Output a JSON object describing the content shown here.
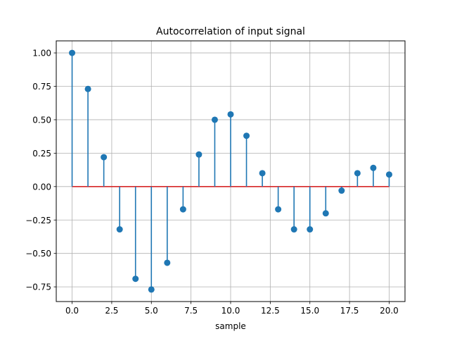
{
  "chart_data": {
    "type": "stem",
    "title": "Autocorrelation of input signal",
    "xlabel": "sample",
    "ylabel": "",
    "xlim": [
      -1.0,
      21.0
    ],
    "ylim": [
      -0.86,
      1.09
    ],
    "grid": true,
    "baseline": 0,
    "x": [
      0,
      1,
      2,
      3,
      4,
      5,
      6,
      7,
      8,
      9,
      10,
      11,
      12,
      13,
      14,
      15,
      16,
      17,
      18,
      19,
      20
    ],
    "values": [
      1.0,
      0.73,
      0.22,
      -0.32,
      -0.69,
      -0.77,
      -0.57,
      -0.17,
      0.24,
      0.5,
      0.54,
      0.38,
      0.1,
      -0.17,
      -0.32,
      -0.32,
      -0.2,
      -0.03,
      0.1,
      0.14,
      0.09
    ],
    "xticks": [
      0.0,
      2.5,
      5.0,
      7.5,
      10.0,
      12.5,
      15.0,
      17.5,
      20.0
    ],
    "xtick_labels": [
      "0.0",
      "2.5",
      "5.0",
      "7.5",
      "10.0",
      "12.5",
      "15.0",
      "17.5",
      "20.0"
    ],
    "yticks": [
      1.0,
      0.75,
      0.5,
      0.25,
      0.0,
      -0.25,
      -0.5,
      -0.75
    ],
    "ytick_labels": [
      "1.00",
      "0.75",
      "0.50",
      "0.25",
      "0.00",
      "−0.25",
      "−0.50",
      "−0.75"
    ],
    "colors": {
      "stem": "#1f77b4",
      "marker": "#1f77b4",
      "baseline": "#d62728",
      "grid": "#b0b0b0",
      "axes": "#000000"
    }
  }
}
